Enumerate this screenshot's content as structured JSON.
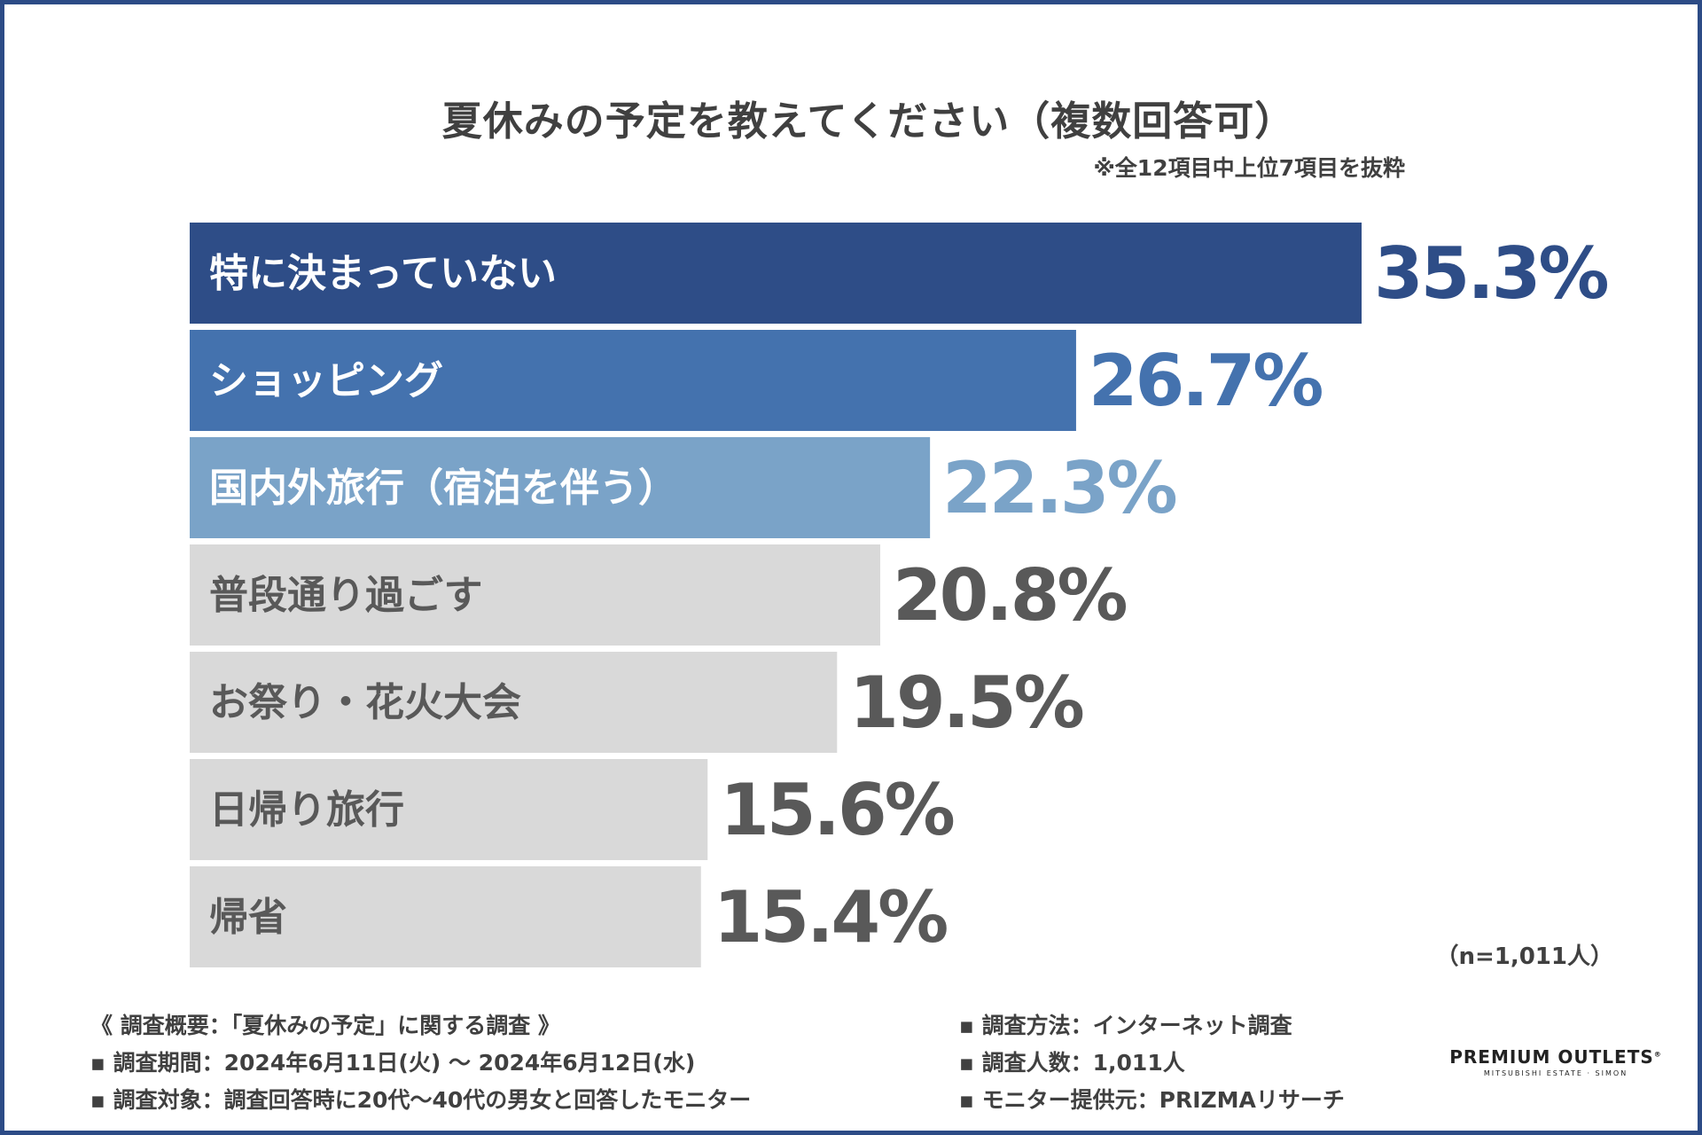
{
  "chart_data": {
    "type": "bar",
    "orientation": "horizontal",
    "title": "夏休みの予定を教えてください（複数回答可）",
    "subtitle": "※全12項目中上位7項目を抜粋",
    "categories": [
      "特に決まっていない",
      "ショッピング",
      "国内外旅行（宿泊を伴う）",
      "普段通り過ごす",
      "お祭り・花火大会",
      "日帰り旅行",
      "帰省"
    ],
    "values": [
      35.3,
      26.7,
      22.3,
      20.8,
      19.5,
      15.6,
      15.4
    ],
    "value_labels": [
      "35.3%",
      "26.7%",
      "22.3%",
      "20.8%",
      "19.5%",
      "15.6%",
      "15.4%"
    ],
    "unit": "%",
    "xlim": [
      0,
      35.3
    ],
    "bar_colors": [
      "#2e4d87",
      "#4472ae",
      "#7aa3c8",
      "#d9d9d9",
      "#d9d9d9",
      "#d9d9d9",
      "#d9d9d9"
    ],
    "label_colors": [
      "#ffffff",
      "#ffffff",
      "#ffffff",
      "#595959",
      "#595959",
      "#595959",
      "#595959"
    ],
    "value_colors": [
      "#2e4d87",
      "#4472ae",
      "#7aa3c8",
      "#595959",
      "#595959",
      "#595959",
      "#595959"
    ],
    "sample_size": "（n=1,011人）"
  },
  "survey": {
    "left": [
      "《 調査概要：「夏休みの予定」に関する調査 》",
      "▪ 調査期間：2024年6月11日(火) ～ 2024年6月12日(水)",
      "▪ 調査対象：調査回答時に20代～40代の男女と回答したモニター"
    ],
    "right": [
      "▪ 調査方法：インターネット調査",
      "▪ 調査人数：1,011人",
      "▪ モニター提供元：PRIZMAリサーチ"
    ]
  },
  "logo": {
    "main": "PREMIUM OUTLETS",
    "mark": "®",
    "sub": "MITSUBISHI ESTATE · SIMON"
  }
}
